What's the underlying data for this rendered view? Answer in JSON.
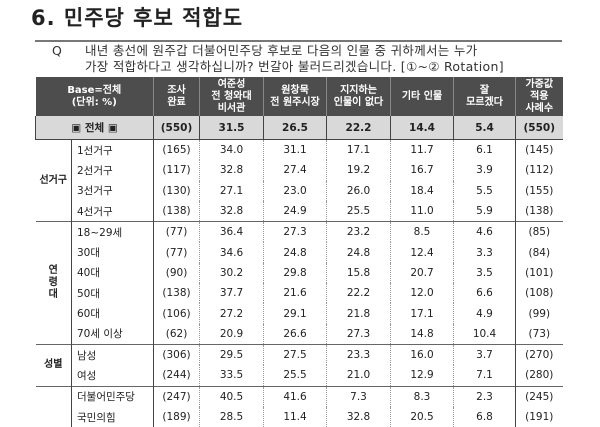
{
  "title": "6. 민주당 후보 적합도",
  "question": {
    "marker": "Q",
    "line1": "내년 총선에 원주갑 더불어민주당 후보로 다음의 인물 중 귀하께서는 누가",
    "line2": "가장 적합하다고 생각하십니까? 번갈아 불러드리겠습니다. [①~② Rotation]"
  },
  "headers": [
    "Base=전체\n(단위: %)",
    "조사\n완료",
    "여준성\n전 청와대\n비서관",
    "원창묵\n전 원주시장",
    "지지하는\n인물이 없다",
    "기타 인물",
    "잘\n모르겠다",
    "가중값\n적용\n사례수"
  ],
  "total": {
    "label": "▣ 전체 ▣",
    "values": [
      "(550)",
      "31.5",
      "26.5",
      "22.2",
      "14.4",
      "5.4",
      "(550)"
    ]
  },
  "groups": [
    {
      "name": "선거구",
      "rows": [
        {
          "label": "1선거구",
          "values": [
            "(165)",
            "34.0",
            "31.1",
            "17.1",
            "11.7",
            "6.1",
            "(145)"
          ]
        },
        {
          "label": "2선거구",
          "values": [
            "(117)",
            "32.8",
            "27.4",
            "19.2",
            "16.7",
            "3.9",
            "(112)"
          ]
        },
        {
          "label": "3선거구",
          "values": [
            "(130)",
            "27.1",
            "23.0",
            "26.0",
            "18.4",
            "5.5",
            "(155)"
          ]
        },
        {
          "label": "4선거구",
          "values": [
            "(138)",
            "32.8",
            "24.9",
            "25.5",
            "11.0",
            "5.9",
            "(138)"
          ]
        }
      ]
    },
    {
      "name": "연\n령\n대",
      "rows": [
        {
          "label": "18~29세",
          "values": [
            "(77)",
            "36.4",
            "27.3",
            "23.2",
            "8.5",
            "4.6",
            "(85)"
          ]
        },
        {
          "label": "30대",
          "values": [
            "(77)",
            "34.6",
            "24.8",
            "24.8",
            "12.4",
            "3.3",
            "(84)"
          ]
        },
        {
          "label": "40대",
          "values": [
            "(90)",
            "30.2",
            "29.8",
            "15.8",
            "20.7",
            "3.5",
            "(101)"
          ]
        },
        {
          "label": "50대",
          "values": [
            "(138)",
            "37.7",
            "21.6",
            "22.2",
            "12.0",
            "6.6",
            "(108)"
          ]
        },
        {
          "label": "60대",
          "values": [
            "(106)",
            "27.2",
            "29.1",
            "21.8",
            "17.1",
            "4.9",
            "(99)"
          ]
        },
        {
          "label": "70세 이상",
          "values": [
            "(62)",
            "20.9",
            "26.6",
            "27.3",
            "14.8",
            "10.4",
            "(73)"
          ]
        }
      ]
    },
    {
      "name": "성별",
      "rows": [
        {
          "label": "남성",
          "values": [
            "(306)",
            "29.5",
            "27.5",
            "23.3",
            "16.0",
            "3.7",
            "(270)"
          ]
        },
        {
          "label": "여성",
          "values": [
            "(244)",
            "33.5",
            "25.5",
            "21.0",
            "12.9",
            "7.1",
            "(280)"
          ]
        }
      ]
    },
    {
      "name": "",
      "rows": [
        {
          "label": "더불어민주당",
          "values": [
            "(247)",
            "40.5",
            "41.6",
            "7.3",
            "8.3",
            "2.3",
            "(245)"
          ]
        },
        {
          "label": "국민의힘",
          "values": [
            "(189)",
            "28.5",
            "11.4",
            "32.8",
            "20.5",
            "6.8",
            "(191)"
          ]
        }
      ]
    }
  ]
}
